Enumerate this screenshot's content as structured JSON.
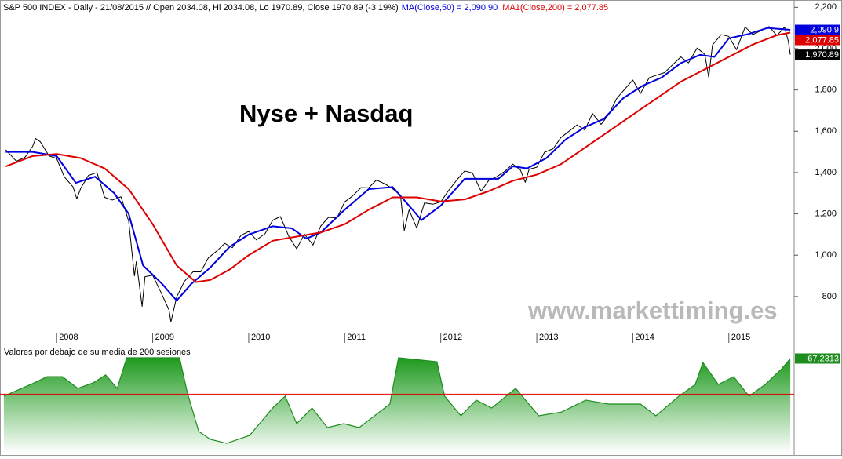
{
  "chart_data": [
    {
      "type": "line",
      "title": "S&P 500 INDEX - Daily - 21/08/2015 // Open 2034.08, Hi 2034.08, Lo 1970.89, Close 1970.89 (-3.19%)",
      "annotations": [
        "Nyse + Nasdaq",
        "www.markettiming.es"
      ],
      "xlim": [
        2007.41,
        2015.68
      ],
      "xticks": [
        2008,
        2009,
        2010,
        2011,
        2012,
        2013,
        2014,
        2015
      ],
      "ylim": [
        640,
        2224
      ],
      "yticks": [
        {
          "value": 800,
          "label": "800"
        },
        {
          "value": 1000,
          "label": "1,000"
        },
        {
          "value": 1200,
          "label": "1,200"
        },
        {
          "value": 1400,
          "label": "1,400"
        },
        {
          "value": 1600,
          "label": "1,600"
        },
        {
          "value": 1800,
          "label": "1,800"
        },
        {
          "value": 2000,
          "label": "2,000"
        },
        {
          "value": 2200,
          "label": "2,200"
        }
      ],
      "grid": false,
      "series": [
        {
          "color": "#000000",
          "x": [
            2007.47,
            2007.58,
            2007.67,
            2007.75,
            2007.78,
            2007.83,
            2007.92,
            2008.0,
            2008.08,
            2008.17,
            2008.21,
            2008.25,
            2008.33,
            2008.42,
            2008.5,
            2008.58,
            2008.67,
            2008.75,
            2008.81,
            2008.83,
            2008.89,
            2008.92,
            2009.0,
            2009.08,
            2009.17,
            2009.19,
            2009.25,
            2009.33,
            2009.42,
            2009.5,
            2009.58,
            2009.67,
            2009.75,
            2009.83,
            2009.92,
            2010.0,
            2010.08,
            2010.17,
            2010.25,
            2010.33,
            2010.42,
            2010.5,
            2010.58,
            2010.67,
            2010.75,
            2010.83,
            2010.92,
            2011.0,
            2011.08,
            2011.17,
            2011.25,
            2011.33,
            2011.42,
            2011.5,
            2011.58,
            2011.62,
            2011.67,
            2011.75,
            2011.83,
            2011.92,
            2012.0,
            2012.08,
            2012.17,
            2012.25,
            2012.33,
            2012.42,
            2012.5,
            2012.58,
            2012.67,
            2012.75,
            2012.83,
            2012.88,
            2012.92,
            2013.0,
            2013.08,
            2013.17,
            2013.25,
            2013.33,
            2013.42,
            2013.5,
            2013.58,
            2013.67,
            2013.75,
            2013.83,
            2013.92,
            2014.0,
            2014.08,
            2014.17,
            2014.25,
            2014.33,
            2014.42,
            2014.5,
            2014.58,
            2014.67,
            2014.75,
            2014.79,
            2014.83,
            2014.92,
            2015.0,
            2015.08,
            2015.17,
            2015.25,
            2015.33,
            2015.42,
            2015.5,
            2015.58,
            2015.62,
            2015.64
          ],
          "values": [
            1510,
            1455,
            1474,
            1527,
            1565,
            1549,
            1481,
            1468,
            1379,
            1331,
            1273,
            1323,
            1386,
            1400,
            1280,
            1267,
            1283,
            1165,
            900,
            969,
            752,
            896,
            903,
            826,
            735,
            677,
            798,
            873,
            919,
            919,
            987,
            1021,
            1057,
            1036,
            1096,
            1115,
            1074,
            1104,
            1169,
            1187,
            1089,
            1031,
            1102,
            1049,
            1141,
            1183,
            1181,
            1258,
            1286,
            1327,
            1326,
            1364,
            1345,
            1321,
            1292,
            1119,
            1219,
            1131,
            1253,
            1247,
            1258,
            1312,
            1366,
            1408,
            1398,
            1310,
            1362,
            1379,
            1407,
            1441,
            1412,
            1353,
            1416,
            1426,
            1498,
            1515,
            1569,
            1598,
            1631,
            1606,
            1686,
            1633,
            1682,
            1757,
            1806,
            1848,
            1783,
            1859,
            1872,
            1884,
            1924,
            1960,
            1931,
            2003,
            1972,
            1862,
            2018,
            2068,
            2059,
            1995,
            2105,
            2068,
            2086,
            2107,
            2063,
            2104,
            2035,
            1970.89
          ],
          "value_labels": [
            null,
            null,
            null,
            null,
            null,
            null,
            null,
            null,
            null,
            null,
            null,
            null,
            null,
            null,
            null,
            null,
            null,
            null,
            null,
            null,
            null,
            null,
            null,
            null,
            null,
            null,
            null,
            null,
            null,
            null,
            null,
            null,
            null,
            null,
            null,
            null,
            null,
            null,
            null,
            null,
            null,
            null,
            null,
            null,
            null,
            null,
            null,
            null,
            null,
            null,
            null,
            null,
            null,
            null,
            null,
            null,
            null,
            null,
            null,
            null,
            null,
            null,
            null,
            null,
            null,
            null,
            null,
            null,
            null,
            null,
            null,
            null,
            null,
            null,
            null,
            null,
            null,
            null,
            null,
            null,
            null,
            null,
            null,
            null,
            null,
            null,
            null,
            null,
            null,
            null,
            null,
            null,
            null,
            null,
            null,
            null,
            null,
            null,
            null,
            null,
            null,
            null,
            null,
            null,
            null,
            null,
            null,
            "1,970.89"
          ]
        },
        {
          "name": "MA(Close,50) = 2,090.90",
          "color": "#0000dd",
          "x": [
            2007.47,
            2007.75,
            2008.0,
            2008.2,
            2008.4,
            2008.6,
            2008.75,
            2008.9,
            2009.1,
            2009.25,
            2009.4,
            2009.6,
            2009.8,
            2010.0,
            2010.25,
            2010.45,
            2010.6,
            2010.75,
            2011.0,
            2011.25,
            2011.5,
            2011.65,
            2011.8,
            2012.0,
            2012.25,
            2012.45,
            2012.6,
            2012.75,
            2012.9,
            2013.1,
            2013.3,
            2013.5,
            2013.7,
            2013.9,
            2014.1,
            2014.3,
            2014.5,
            2014.7,
            2014.85,
            2015.0,
            2015.2,
            2015.4,
            2015.64
          ],
          "values": [
            1500,
            1500,
            1480,
            1350,
            1380,
            1300,
            1200,
            950,
            860,
            780,
            860,
            940,
            1040,
            1100,
            1140,
            1130,
            1080,
            1110,
            1220,
            1320,
            1330,
            1250,
            1170,
            1240,
            1370,
            1370,
            1370,
            1430,
            1420,
            1470,
            1560,
            1620,
            1660,
            1760,
            1820,
            1860,
            1930,
            1970,
            1960,
            2050,
            2070,
            2100,
            2090.9
          ],
          "value_labels": [
            null,
            null,
            null,
            null,
            null,
            null,
            null,
            null,
            null,
            null,
            null,
            null,
            null,
            null,
            null,
            null,
            null,
            null,
            null,
            null,
            null,
            null,
            null,
            null,
            null,
            null,
            null,
            null,
            null,
            null,
            null,
            null,
            null,
            null,
            null,
            null,
            null,
            null,
            null,
            null,
            null,
            null,
            "2,090.9"
          ]
        },
        {
          "name": "MA1(Close,200) = 2,077.85",
          "color": "#dd0000",
          "x": [
            2007.47,
            2007.75,
            2008.0,
            2008.25,
            2008.5,
            2008.75,
            2009.0,
            2009.25,
            2009.45,
            2009.6,
            2009.8,
            2010.0,
            2010.25,
            2010.5,
            2010.75,
            2011.0,
            2011.25,
            2011.5,
            2011.75,
            2012.0,
            2012.25,
            2012.5,
            2012.75,
            2013.0,
            2013.25,
            2013.5,
            2013.75,
            2014.0,
            2014.25,
            2014.5,
            2014.75,
            2015.0,
            2015.25,
            2015.5,
            2015.64
          ],
          "values": [
            1430,
            1480,
            1490,
            1470,
            1420,
            1320,
            1150,
            950,
            870,
            880,
            930,
            1000,
            1070,
            1090,
            1110,
            1150,
            1220,
            1280,
            1280,
            1260,
            1270,
            1310,
            1360,
            1390,
            1440,
            1520,
            1600,
            1680,
            1760,
            1840,
            1900,
            1960,
            2020,
            2065,
            2077.85
          ],
          "value_labels": [
            null,
            null,
            null,
            null,
            null,
            null,
            null,
            null,
            null,
            null,
            null,
            null,
            null,
            null,
            null,
            null,
            null,
            null,
            null,
            null,
            null,
            null,
            null,
            null,
            null,
            null,
            null,
            null,
            null,
            null,
            null,
            null,
            null,
            null,
            "2,077.85"
          ]
        }
      ]
    },
    {
      "type": "area",
      "title": "Valores por debajo de su media de 200 sesiones",
      "xlim": [
        2007.41,
        2015.68
      ],
      "ylim": [
        0,
        75
      ],
      "color": "#1e8c1e",
      "hline": {
        "value": 42,
        "color": "#dd0000"
      },
      "x": [
        2007.45,
        2007.73,
        2007.9,
        2008.06,
        2008.22,
        2008.38,
        2008.51,
        2008.63,
        2008.73,
        2009.28,
        2009.36,
        2009.48,
        2009.6,
        2009.77,
        2010.01,
        2010.25,
        2010.38,
        2010.5,
        2010.66,
        2010.82,
        2010.99,
        2011.15,
        2011.31,
        2011.47,
        2011.56,
        2011.96,
        2012.04,
        2012.21,
        2012.37,
        2012.53,
        2012.78,
        2013.02,
        2013.26,
        2013.51,
        2013.75,
        2014.08,
        2014.24,
        2014.48,
        2014.65,
        2014.73,
        2014.89,
        2015.05,
        2015.21,
        2015.38,
        2015.55,
        2015.64
      ],
      "values": [
        40.6,
        48.9,
        54.4,
        54.4,
        46.1,
        50.0,
        55.6,
        46.1,
        67.8,
        67.8,
        43.3,
        15.6,
        10.0,
        7.2,
        12.8,
        32.2,
        40.6,
        21.1,
        32.2,
        18.3,
        21.1,
        18.3,
        26.7,
        35.0,
        67.8,
        65.0,
        40.6,
        26.7,
        37.8,
        32.2,
        46.1,
        26.7,
        29.4,
        37.8,
        35.0,
        35.0,
        26.7,
        40.6,
        48.9,
        64.4,
        48.9,
        54.4,
        40.6,
        48.9,
        60.0,
        67.2313
      ]
    }
  ]
}
